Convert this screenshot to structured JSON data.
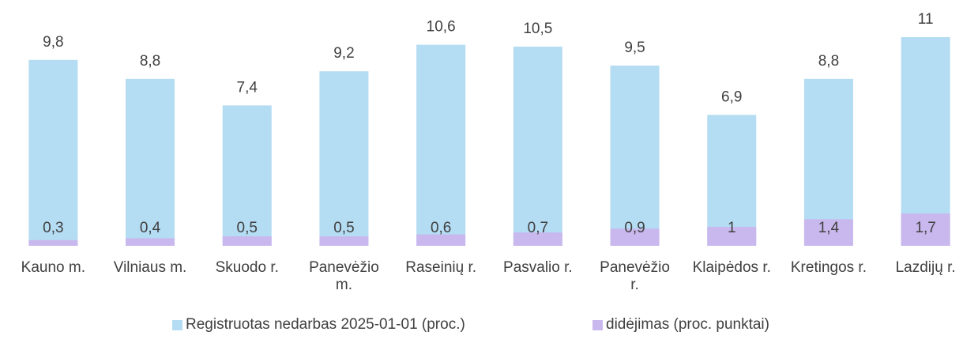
{
  "chart_data": {
    "type": "bar",
    "categories": [
      "Kauno m.",
      "Vilniaus m.",
      "Skuodo r.",
      "Panevėžio m.",
      "Raseinių r.",
      "Pasvalio r.",
      "Panevėžio r.",
      "Klaipėdos r.",
      "Kretingos r.",
      "Lazdijų r."
    ],
    "series": [
      {
        "name": "Registruotas nedarbas 2025-01-01 (proc.)",
        "color": "#b4dcf2",
        "values": [
          9.8,
          8.8,
          7.4,
          9.2,
          10.6,
          10.5,
          9.5,
          6.9,
          8.8,
          11
        ],
        "value_labels": [
          "9,8",
          "8,8",
          "7,4",
          "9,2",
          "10,6",
          "10,5",
          "9,5",
          "6,9",
          "8,8",
          "11"
        ]
      },
      {
        "name": "didėjimas (proc. punktai)",
        "color": "#c9b8ee",
        "values": [
          0.3,
          0.4,
          0.5,
          0.5,
          0.6,
          0.7,
          0.9,
          1,
          1.4,
          1.7
        ],
        "value_labels": [
          "0,3",
          "0,4",
          "0,5",
          "0,5",
          "0,6",
          "0,7",
          "0,9",
          "1",
          "1,4",
          "1,7"
        ]
      }
    ],
    "ylim": [
      0,
      12
    ]
  }
}
